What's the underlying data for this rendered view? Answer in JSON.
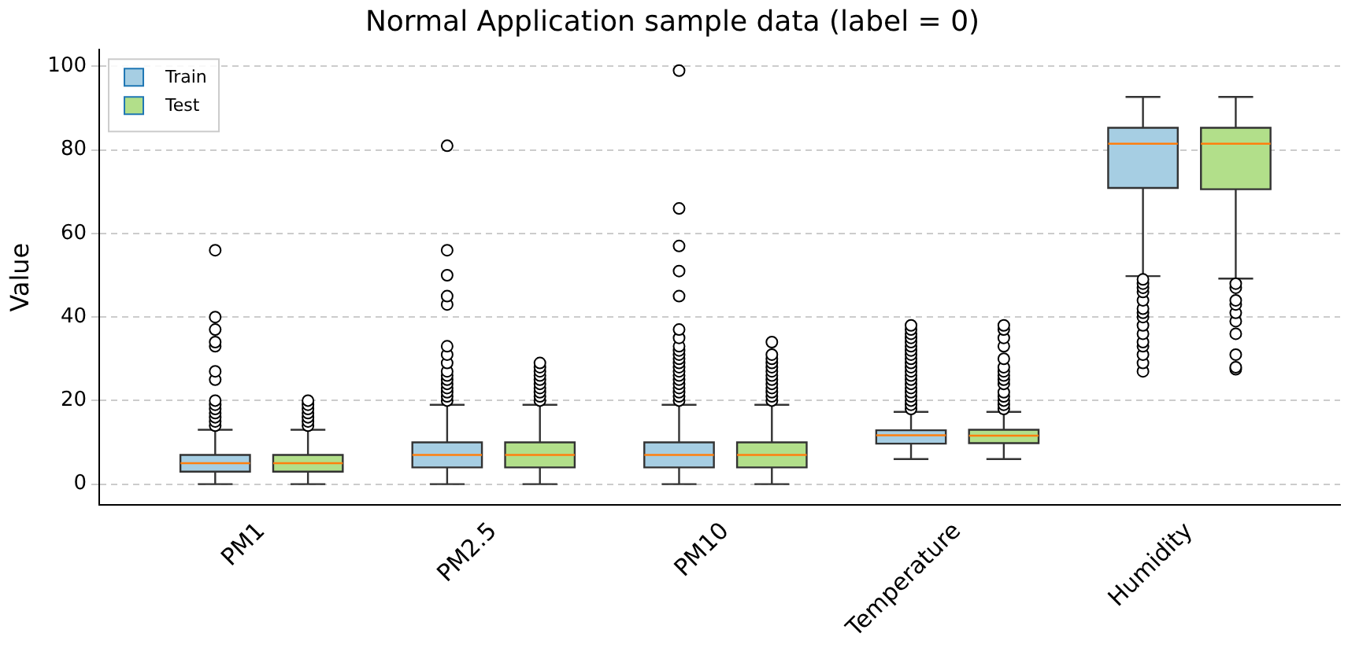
{
  "chart_data": {
    "type": "box",
    "title": "Normal Application sample data (label = 0)",
    "ylabel": "Value",
    "categories": [
      "PM1",
      "PM2.5",
      "PM10",
      "Temperature",
      "Humidity"
    ],
    "ylim": [
      -5,
      104
    ],
    "yticks": [
      0,
      20,
      40,
      60,
      80,
      100
    ],
    "grid": "y",
    "legend": "top left",
    "series": [
      {
        "name": "Train",
        "color": "#a6cee3",
        "boxes": [
          {
            "low": 0,
            "q1": 3,
            "median": 5,
            "q3": 7,
            "high": 13,
            "outliers": [
              14,
              15,
              16,
              17,
              18,
              19,
              20,
              25,
              27,
              33,
              34,
              37,
              40,
              56
            ]
          },
          {
            "low": 0,
            "q1": 4,
            "median": 7,
            "q3": 10,
            "high": 19,
            "outliers": [
              20,
              21,
              22,
              23,
              24,
              25,
              26,
              27,
              29,
              31,
              33,
              43,
              45,
              50,
              56,
              81
            ]
          },
          {
            "low": 0,
            "q1": 4,
            "median": 7,
            "q3": 10,
            "high": 19,
            "outliers": [
              20,
              21,
              22,
              23,
              24,
              25,
              26,
              27,
              28,
              29,
              30,
              31,
              32,
              33,
              35,
              37,
              45,
              51,
              57,
              66,
              99
            ]
          },
          {
            "low": 6,
            "q1": 9.7,
            "median": 11.7,
            "q3": 12.9,
            "high": 17.3,
            "outliers": [
              18,
              19,
              20,
              21,
              22,
              23,
              24,
              25,
              26,
              27,
              28,
              29,
              30,
              31,
              32,
              33,
              34,
              35,
              36,
              37,
              38
            ]
          },
          {
            "low": 49.8,
            "q1": 70.9,
            "median": 81.5,
            "q3": 85.3,
            "high": 92.7,
            "outliers": [
              27,
              29,
              31,
              33,
              34,
              36,
              38,
              40,
              41,
              42,
              44,
              46,
              47,
              48,
              49
            ]
          }
        ]
      },
      {
        "name": "Test",
        "color": "#b2df8a",
        "boxes": [
          {
            "low": 0,
            "q1": 3,
            "median": 5,
            "q3": 7,
            "high": 13,
            "outliers": [
              14,
              15,
              16,
              17,
              18,
              19,
              20
            ]
          },
          {
            "low": 0,
            "q1": 4,
            "median": 7,
            "q3": 10,
            "high": 19,
            "outliers": [
              20,
              21,
              22,
              23,
              24,
              25,
              26,
              27,
              28,
              29
            ]
          },
          {
            "low": 0,
            "q1": 4,
            "median": 7,
            "q3": 10,
            "high": 19,
            "outliers": [
              20,
              21,
              22,
              23,
              24,
              25,
              26,
              27,
              28,
              29,
              30,
              31,
              34
            ]
          },
          {
            "low": 6,
            "q1": 9.8,
            "median": 11.6,
            "q3": 13,
            "high": 17.3,
            "outliers": [
              18,
              19,
              20,
              21,
              22,
              24,
              25,
              26,
              27,
              28,
              30,
              33,
              35,
              37,
              38
            ]
          },
          {
            "low": 49.2,
            "q1": 70.6,
            "median": 81.5,
            "q3": 85.3,
            "high": 92.7,
            "outliers": [
              27.5,
              28,
              31,
              36,
              39,
              41,
              43,
              44,
              47,
              48
            ]
          }
        ]
      }
    ]
  }
}
